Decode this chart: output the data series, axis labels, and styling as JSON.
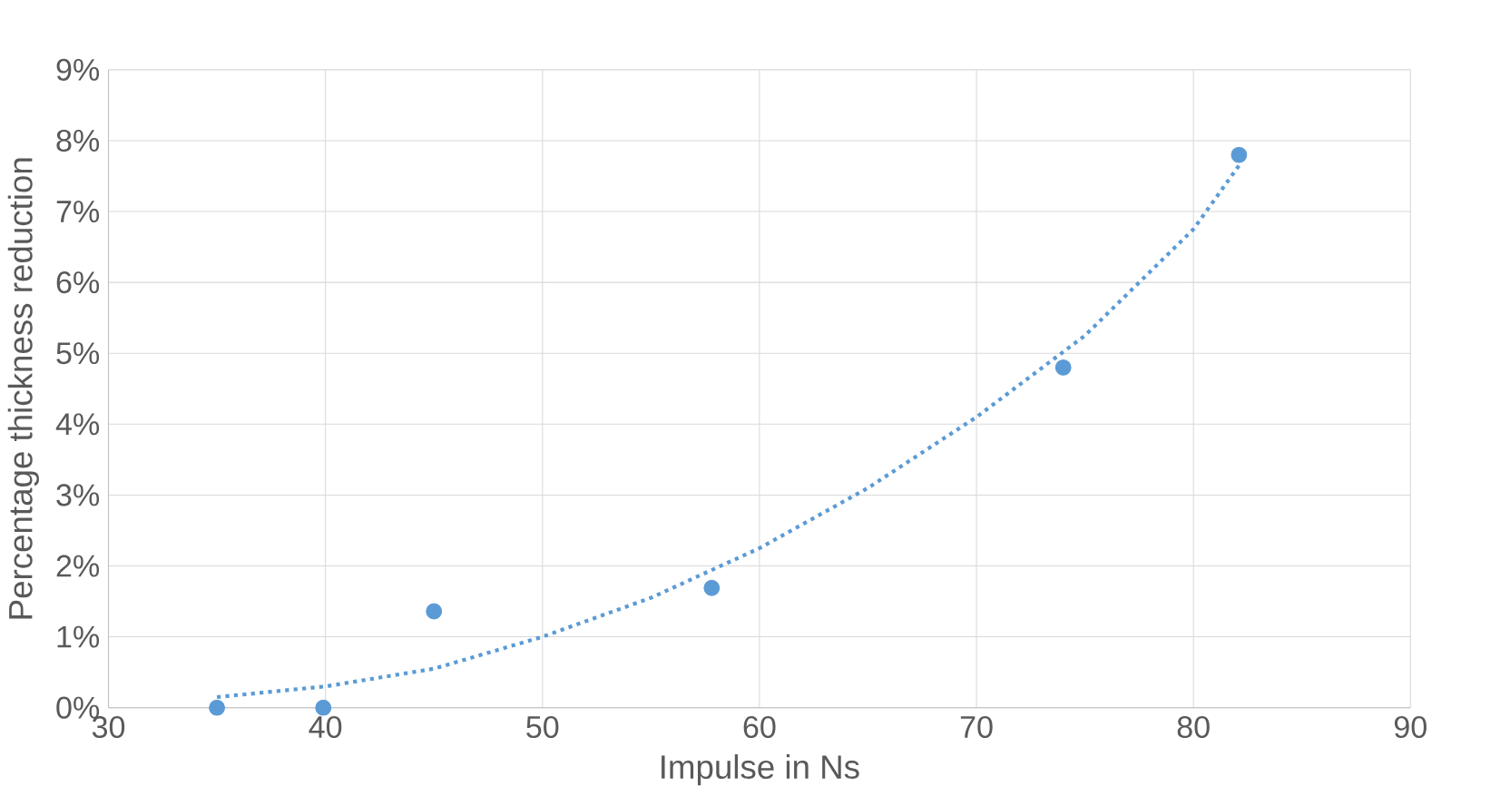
{
  "chart_data": {
    "type": "scatter",
    "xlabel": "Impulse in Ns",
    "ylabel": "Percentage thickness reduction",
    "xlim": [
      30,
      90
    ],
    "xticks": [
      30,
      40,
      50,
      60,
      70,
      80,
      90
    ],
    "ylim": [
      0,
      9
    ],
    "yticks": [
      {
        "value": 0,
        "label": "0%"
      },
      {
        "value": 1,
        "label": "1%"
      },
      {
        "value": 2,
        "label": "2%"
      },
      {
        "value": 3,
        "label": "3%"
      },
      {
        "value": 4,
        "label": "4%"
      },
      {
        "value": 5,
        "label": "5%"
      },
      {
        "value": 6,
        "label": "6%"
      },
      {
        "value": 7,
        "label": "7%"
      },
      {
        "value": 8,
        "label": "8%"
      },
      {
        "value": 9,
        "label": "9%"
      }
    ],
    "grid": true,
    "marker": "circle",
    "series": [
      {
        "color": "#5b9bd5",
        "x": [
          35,
          39.9,
          45,
          57.8,
          74.0,
          82.1
        ],
        "values": [
          0,
          0,
          1.36,
          1.69,
          4.8,
          7.8
        ]
      },
      {
        "type": "line",
        "color": "#5b9bd5",
        "line_style": "dotted",
        "marker": "none",
        "x": [
          35,
          40,
          45,
          50,
          55,
          60,
          65,
          70,
          75,
          80,
          82.1
        ],
        "values": [
          0.15,
          0.3,
          0.55,
          1.0,
          1.55,
          2.25,
          3.1,
          4.1,
          5.25,
          6.75,
          7.65
        ]
      }
    ]
  }
}
